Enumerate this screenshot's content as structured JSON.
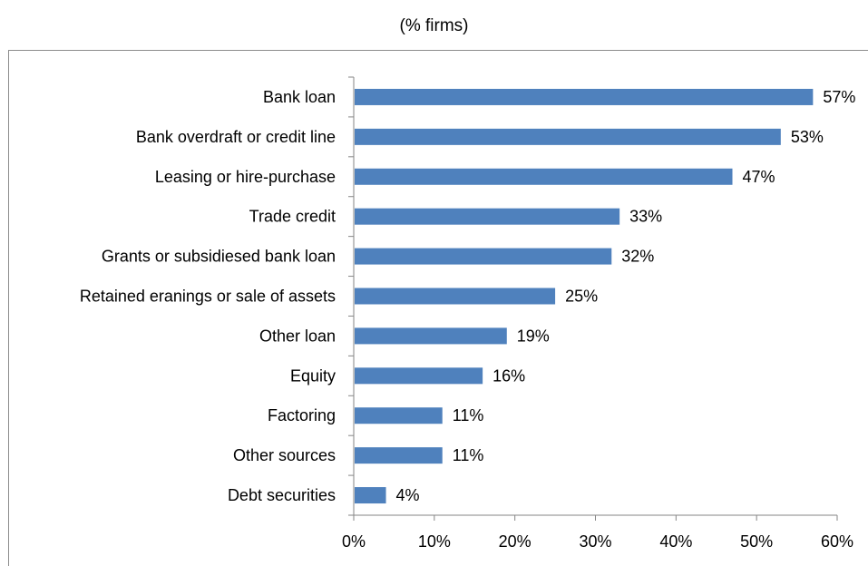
{
  "chart_data": {
    "type": "bar",
    "orientation": "horizontal",
    "subtitle": "(% firms)",
    "categories": [
      "Bank loan",
      "Bank overdraft or credit line",
      "Leasing or hire-purchase",
      "Trade credit",
      "Grants or subsidiesed bank loan",
      "Retained eranings or sale of assets",
      "Other loan",
      "Equity",
      "Factoring",
      "Other sources",
      "Debt securities"
    ],
    "values": [
      57,
      53,
      47,
      33,
      32,
      25,
      19,
      16,
      11,
      11,
      4
    ],
    "data_labels": [
      "57%",
      "53%",
      "47%",
      "33%",
      "32%",
      "25%",
      "19%",
      "16%",
      "11%",
      "11%",
      "4%"
    ],
    "xlim": [
      0,
      60
    ],
    "x_ticks": [
      "0%",
      "10%",
      "20%",
      "30%",
      "40%",
      "50%",
      "60%"
    ],
    "grid": false,
    "legend": "none",
    "bar_color": "#4f81bd"
  }
}
